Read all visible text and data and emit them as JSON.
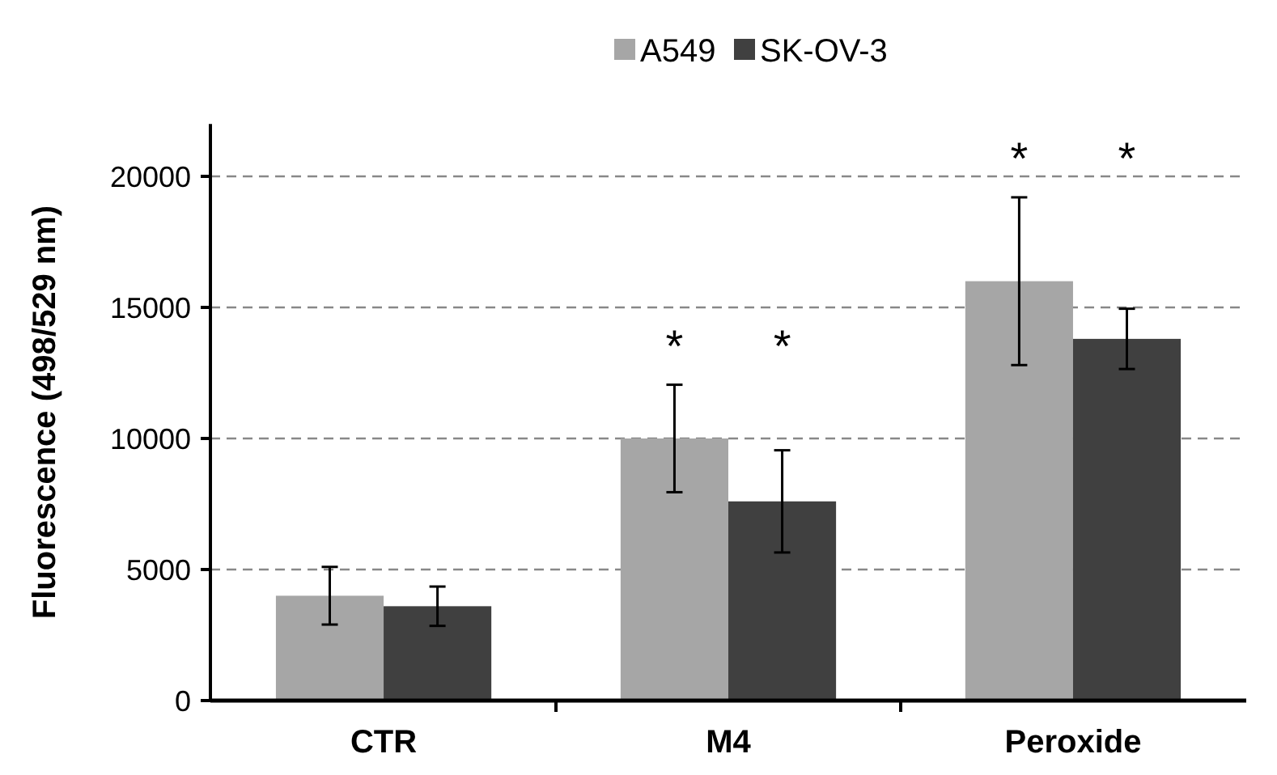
{
  "chart_data": {
    "type": "bar",
    "ylabel": "Fluorescence (498/529 nm)",
    "categories": [
      "CTR",
      "M4",
      "Peroxide"
    ],
    "series": [
      {
        "name": "A549",
        "color": "#a6a6a6",
        "values": [
          4000,
          10000,
          16000
        ],
        "errors": [
          1100,
          2050,
          3200
        ]
      },
      {
        "name": "SK-OV-3",
        "color": "#404040",
        "values": [
          3600,
          7600,
          13800
        ],
        "errors": [
          750,
          1950,
          1150
        ]
      }
    ],
    "ylim": [
      0,
      22000
    ],
    "yticks": [
      0,
      5000,
      10000,
      15000,
      20000
    ],
    "grid": "y",
    "legend": "top",
    "annotations": [
      "*",
      "*",
      "*",
      "*"
    ]
  }
}
